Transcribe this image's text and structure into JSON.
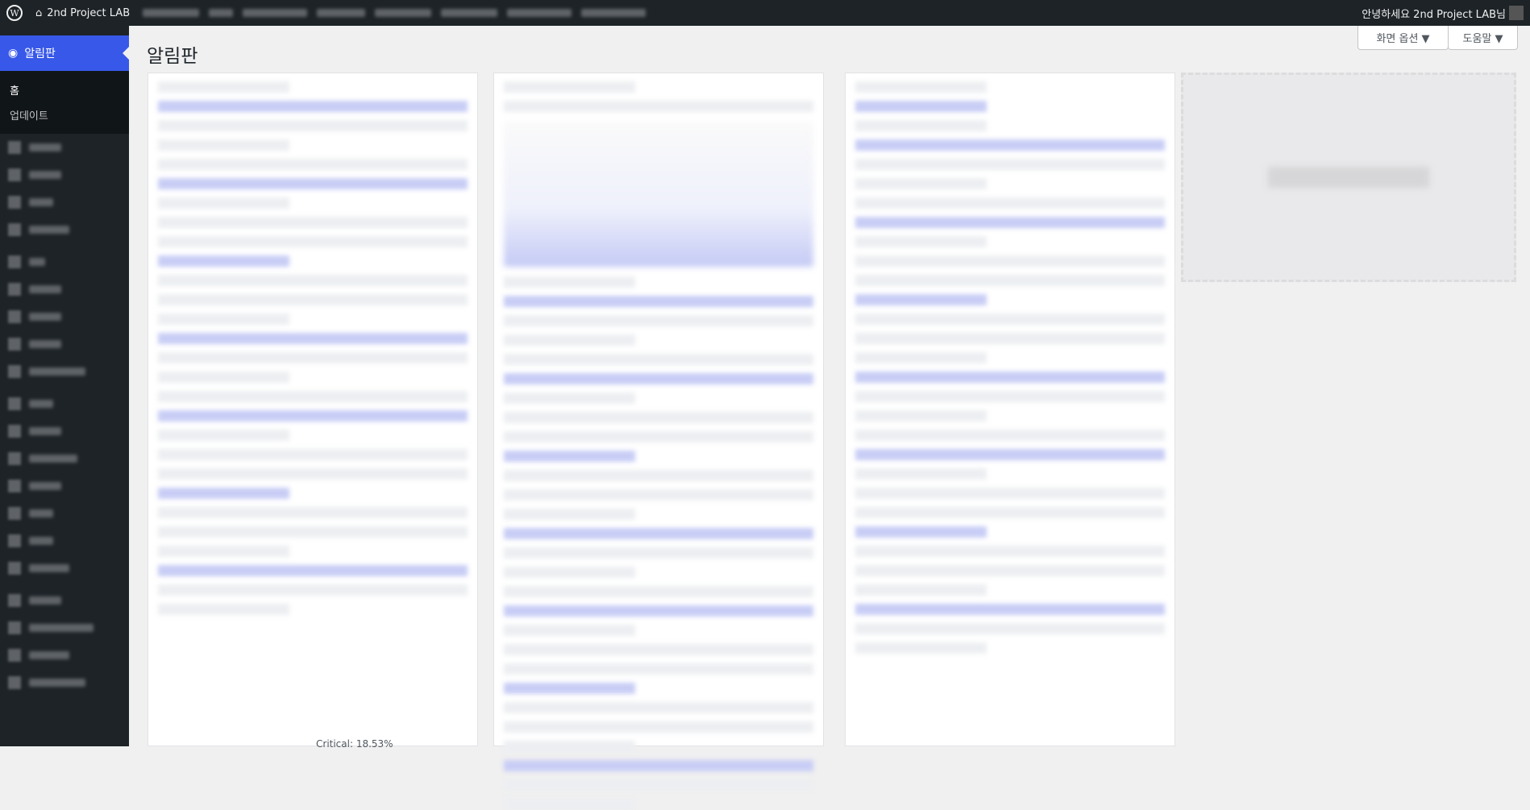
{
  "adminbar": {
    "site_name": "2nd Project LAB",
    "greeting": "안녕하세요 2nd Project LAB님"
  },
  "sidebar": {
    "current": "알림판",
    "submenu": [
      "홈",
      "업데이트"
    ]
  },
  "page": {
    "title": "알림판"
  },
  "buttons": {
    "screen_options": "화면 옵션 ▼",
    "help": "도움말 ▼"
  },
  "footer_text": "Critical: 18.53%"
}
